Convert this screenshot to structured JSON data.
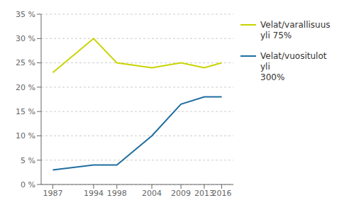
{
  "chart_data": {
    "type": "line",
    "x": [
      1987,
      1994,
      1998,
      2004,
      2009,
      2013,
      2016
    ],
    "series": [
      {
        "name": "Velat/varallisuus\nyli 75%",
        "color": "#c8d400",
        "values": [
          23,
          30,
          25,
          24,
          25,
          24,
          25
        ]
      },
      {
        "name": "Velat/vuositulot yli\n300%",
        "color": "#1f6ea0",
        "values": [
          3,
          4,
          4,
          10,
          16.5,
          18,
          18
        ]
      }
    ],
    "xlim": [
      1985,
      2018
    ],
    "xticks": [
      1987,
      1994,
      1998,
      2004,
      2009,
      2013,
      2016
    ],
    "ylim": [
      0,
      35
    ],
    "yticks": [
      {
        "value": 0,
        "label": "0 %"
      },
      {
        "value": 5,
        "label": "5 %"
      },
      {
        "value": 10,
        "label": "10 %"
      },
      {
        "value": 15,
        "label": "15 %"
      },
      {
        "value": 20,
        "label": "20 %"
      },
      {
        "value": 25,
        "label": "25 %"
      },
      {
        "value": 30,
        "label": "30 %"
      },
      {
        "value": 35,
        "label": "35 %"
      }
    ],
    "grid": "y",
    "legend": "right"
  }
}
